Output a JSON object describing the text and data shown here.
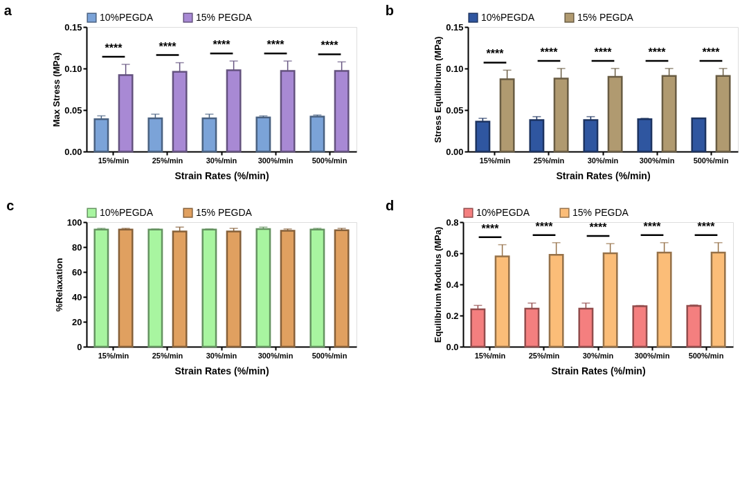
{
  "chart_data": [
    {
      "type": "bar",
      "title": "a",
      "xlabel": "Strain Rates (%/min)",
      "ylabel": "Max Stress (MPa)",
      "categories": [
        "15%/min",
        "25%/min",
        "30%/min",
        "300%/min",
        "500%/min"
      ],
      "ylim": [
        0,
        0.15
      ],
      "yticks": [
        {
          "value": 0,
          "label": "0.00"
        },
        {
          "value": 0.05,
          "label": "0.05"
        },
        {
          "value": 0.1,
          "label": "0.10"
        },
        {
          "value": 0.15,
          "label": "0.15"
        }
      ],
      "grid": false,
      "legend": "top",
      "series": [
        {
          "name": "10%PEGDA",
          "color": "#7ba3d8",
          "values": [
            0.039,
            0.04,
            0.04,
            0.041,
            0.042
          ],
          "errors": [
            [
              0.039,
              0.043
            ],
            [
              0.04,
              0.045
            ],
            [
              0.04,
              0.045
            ],
            [
              0.041,
              0.043
            ],
            [
              0.042,
              0.044
            ]
          ]
        },
        {
          "name": "15% PEGDA",
          "color": "#a889d4",
          "values": [
            0.092,
            0.096,
            0.098,
            0.097,
            0.097
          ],
          "errors": [
            [
              0.092,
              0.105
            ],
            [
              0.096,
              0.107
            ],
            [
              0.098,
              0.109
            ],
            [
              0.097,
              0.109
            ],
            [
              0.097,
              0.108
            ]
          ]
        }
      ],
      "annotations": [
        "****",
        "****",
        "****",
        "****",
        "****"
      ]
    },
    {
      "type": "bar",
      "title": "b",
      "xlabel": "Strain Rates (%/min)",
      "ylabel": "Stress Equilibrium (MPa)",
      "categories": [
        "15%/min",
        "25%/min",
        "30%/min",
        "300%/min",
        "500%/min"
      ],
      "ylim": [
        0,
        0.15
      ],
      "yticks": [
        {
          "value": 0,
          "label": "0.00"
        },
        {
          "value": 0.05,
          "label": "0.05"
        },
        {
          "value": 0.1,
          "label": "0.10"
        },
        {
          "value": 0.15,
          "label": "0.15"
        }
      ],
      "grid": false,
      "legend": "top",
      "series": [
        {
          "name": "10%PEGDA",
          "color": "#2f56a0",
          "values": [
            0.036,
            0.038,
            0.038,
            0.039,
            0.04
          ],
          "errors": [
            [
              0.036,
              0.04
            ],
            [
              0.038,
              0.042
            ],
            [
              0.038,
              0.042
            ],
            [
              0.039,
              0.04
            ],
            [
              0.04,
              0.04
            ]
          ]
        },
        {
          "name": "15% PEGDA",
          "color": "#b09a70",
          "values": [
            0.087,
            0.088,
            0.09,
            0.091,
            0.091
          ],
          "errors": [
            [
              0.087,
              0.098
            ],
            [
              0.088,
              0.1
            ],
            [
              0.09,
              0.1
            ],
            [
              0.091,
              0.1
            ],
            [
              0.091,
              0.1
            ]
          ]
        }
      ],
      "annotations": [
        "****",
        "****",
        "****",
        "****",
        "****"
      ]
    },
    {
      "type": "bar",
      "title": "c",
      "xlabel": "Strain Rates (%/min)",
      "ylabel": "%Relaxation",
      "categories": [
        "15%/min",
        "25%/min",
        "30%/min",
        "300%/min",
        "500%/min"
      ],
      "ylim": [
        0,
        100
      ],
      "yticks": [
        0,
        20,
        40,
        60,
        80,
        100
      ],
      "grid": false,
      "legend": "top",
      "series": [
        {
          "name": "10%PEGDA",
          "color": "#a8f5a0",
          "values": [
            94,
            94,
            94,
            94.5,
            94
          ],
          "errors": [
            [
              94,
              95
            ],
            [
              94,
              94.5
            ],
            [
              94,
              94.5
            ],
            [
              94.5,
              96
            ],
            [
              94,
              95
            ]
          ]
        },
        {
          "name": "15% PEGDA",
          "color": "#e0a060",
          "values": [
            94,
            92.5,
            92.5,
            93,
            93.5
          ],
          "errors": [
            [
              94,
              95
            ],
            [
              92.5,
              96
            ],
            [
              92.5,
              95
            ],
            [
              93,
              94.5
            ],
            [
              93.5,
              95
            ]
          ]
        }
      ]
    },
    {
      "type": "bar",
      "title": "d",
      "xlabel": "Strain Rates (%/min)",
      "ylabel": "Equilibrium Modulus (MPa)",
      "categories": [
        "15%/min",
        "25%/min",
        "30%/min",
        "300%/min",
        "500%/min"
      ],
      "ylim": [
        0,
        0.8
      ],
      "yticks": [
        {
          "value": 0,
          "label": "0.0"
        },
        0.2,
        0.4,
        0.6,
        0.8
      ],
      "grid": false,
      "legend": "top",
      "series": [
        {
          "name": "10%PEGDA",
          "color": "#f47f7f",
          "values": [
            0.24,
            0.245,
            0.245,
            0.26,
            0.262
          ],
          "errors": [
            [
              0.24,
              0.265
            ],
            [
              0.245,
              0.28
            ],
            [
              0.245,
              0.28
            ],
            [
              0.26,
              0.265
            ],
            [
              0.262,
              0.268
            ]
          ]
        },
        {
          "name": "15% PEGDA",
          "color": "#fbbd78",
          "values": [
            0.58,
            0.59,
            0.6,
            0.605,
            0.605
          ],
          "errors": [
            [
              0.58,
              0.655
            ],
            [
              0.59,
              0.668
            ],
            [
              0.6,
              0.662
            ],
            [
              0.605,
              0.668
            ],
            [
              0.605,
              0.668
            ]
          ]
        }
      ],
      "annotations": [
        "****",
        "****",
        "****",
        "****",
        "****"
      ]
    }
  ]
}
